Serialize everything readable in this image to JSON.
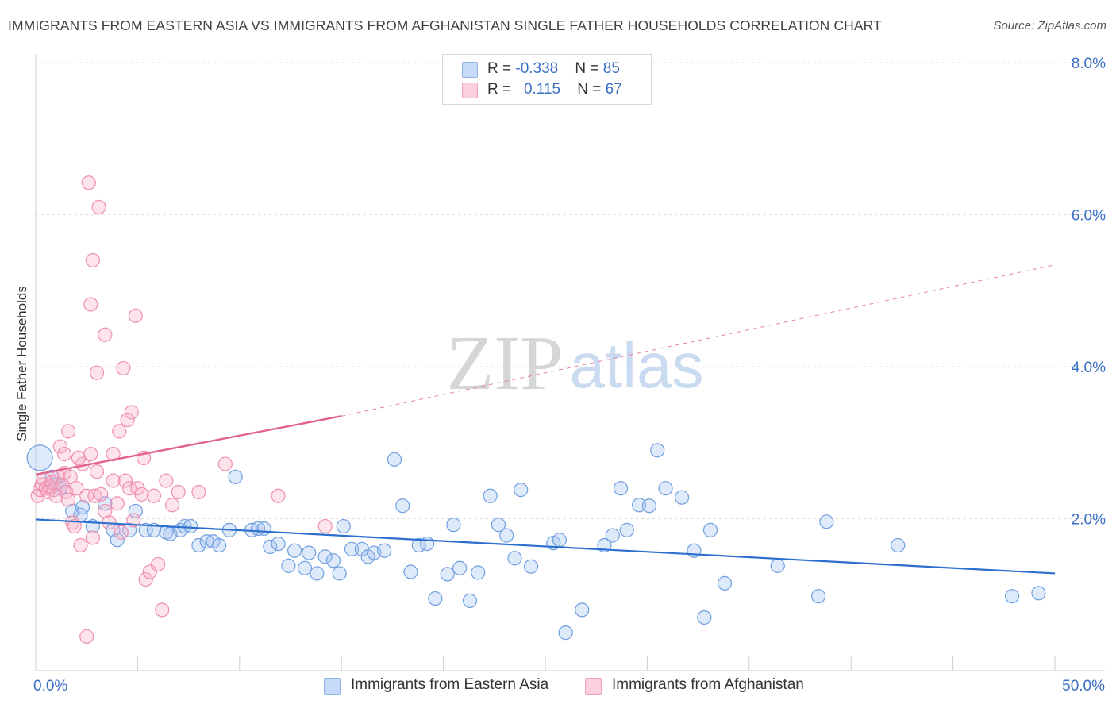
{
  "title": "IMMIGRANTS FROM EASTERN ASIA VS IMMIGRANTS FROM AFGHANISTAN SINGLE FATHER HOUSEHOLDS CORRELATION CHART",
  "source": "Source: ZipAtlas.com",
  "watermark": {
    "zip": "ZIP",
    "atlas": "atlas"
  },
  "legend": {
    "rows": [
      {
        "r_label": "R = ",
        "r_value": "-0.338",
        "n_label": "N = ",
        "n_value": "85",
        "color": "#a9c6ee"
      },
      {
        "r_label": "R = ",
        "r_value": "0.115",
        "n_label": "N = ",
        "n_value": "67",
        "color": "#f6b6cb"
      }
    ]
  },
  "colors": {
    "blue": "#6f9fe0",
    "blue_line": "#2c6fcf",
    "pink": "#f08fb0",
    "pink_line": "#e2628f"
  },
  "chart_data": {
    "type": "scatter",
    "xlabel": "",
    "ylabel": "Single Father Households",
    "xlim": [
      0,
      50
    ],
    "ylim": [
      0,
      8.4
    ],
    "x_tick_labels": [
      {
        "value": 0,
        "label": "0.0%"
      },
      {
        "value": 50,
        "label": "50.0%"
      }
    ],
    "y_tick_labels": [
      {
        "value": 2,
        "label": "2.0%"
      },
      {
        "value": 4,
        "label": "4.0%"
      },
      {
        "value": 6,
        "label": "6.0%"
      },
      {
        "value": 8,
        "label": "8.0%"
      }
    ],
    "grid": "horizontal-dashed",
    "legend_placement": "top-center",
    "series": [
      {
        "name": "Immigrants from Eastern Asia",
        "color": "#6f9fe0",
        "trend": {
          "x": [
            0,
            50
          ],
          "y": [
            1.99,
            1.28
          ],
          "dashed_from": null
        },
        "points": [
          [
            0.2,
            2.8
          ],
          [
            0.8,
            2.55
          ],
          [
            1.0,
            2.45
          ],
          [
            1.2,
            2.4
          ],
          [
            1.8,
            2.1
          ],
          [
            2.2,
            2.05
          ],
          [
            2.3,
            2.15
          ],
          [
            3.4,
            2.2
          ],
          [
            2.8,
            1.9
          ],
          [
            3.8,
            1.85
          ],
          [
            4.0,
            1.72
          ],
          [
            4.6,
            1.85
          ],
          [
            4.9,
            2.1
          ],
          [
            5.4,
            1.85
          ],
          [
            5.8,
            1.85
          ],
          [
            6.4,
            1.82
          ],
          [
            6.6,
            1.8
          ],
          [
            7.1,
            1.85
          ],
          [
            7.3,
            1.9
          ],
          [
            7.6,
            1.9
          ],
          [
            8.0,
            1.65
          ],
          [
            8.4,
            1.7
          ],
          [
            8.7,
            1.7
          ],
          [
            9.0,
            1.65
          ],
          [
            9.5,
            1.85
          ],
          [
            9.8,
            2.55
          ],
          [
            10.6,
            1.85
          ],
          [
            10.9,
            1.87
          ],
          [
            11.2,
            1.87
          ],
          [
            11.5,
            1.63
          ],
          [
            11.9,
            1.67
          ],
          [
            12.4,
            1.38
          ],
          [
            12.7,
            1.58
          ],
          [
            13.2,
            1.35
          ],
          [
            13.4,
            1.55
          ],
          [
            13.8,
            1.28
          ],
          [
            14.2,
            1.5
          ],
          [
            14.6,
            1.45
          ],
          [
            14.9,
            1.28
          ],
          [
            15.1,
            1.9
          ],
          [
            15.5,
            1.6
          ],
          [
            16.0,
            1.6
          ],
          [
            16.3,
            1.5
          ],
          [
            16.6,
            1.55
          ],
          [
            17.1,
            1.58
          ],
          [
            17.6,
            2.78
          ],
          [
            18.0,
            2.17
          ],
          [
            18.4,
            1.3
          ],
          [
            18.8,
            1.65
          ],
          [
            19.2,
            1.67
          ],
          [
            19.6,
            0.95
          ],
          [
            20.2,
            1.27
          ],
          [
            20.5,
            1.92
          ],
          [
            20.8,
            1.35
          ],
          [
            21.3,
            0.92
          ],
          [
            21.7,
            1.29
          ],
          [
            22.3,
            2.3
          ],
          [
            22.7,
            1.92
          ],
          [
            23.1,
            1.78
          ],
          [
            23.5,
            1.48
          ],
          [
            23.8,
            2.38
          ],
          [
            24.3,
            1.37
          ],
          [
            25.4,
            1.68
          ],
          [
            25.7,
            1.72
          ],
          [
            26.0,
            0.5
          ],
          [
            26.8,
            0.8
          ],
          [
            27.9,
            1.65
          ],
          [
            28.3,
            1.78
          ],
          [
            28.7,
            2.4
          ],
          [
            29.0,
            1.85
          ],
          [
            29.6,
            2.18
          ],
          [
            30.1,
            2.17
          ],
          [
            30.5,
            2.9
          ],
          [
            30.9,
            2.4
          ],
          [
            31.7,
            2.28
          ],
          [
            32.3,
            1.58
          ],
          [
            32.8,
            0.7
          ],
          [
            33.1,
            1.85
          ],
          [
            33.8,
            1.15
          ],
          [
            36.4,
            1.38
          ],
          [
            38.4,
            0.98
          ],
          [
            38.8,
            1.96
          ],
          [
            42.3,
            1.65
          ],
          [
            47.9,
            0.98
          ],
          [
            49.2,
            1.02
          ]
        ]
      },
      {
        "name": "Immigrants from Afghanistan",
        "color": "#f08fb0",
        "trend": {
          "x": [
            0,
            15,
            50
          ],
          "y": [
            2.58,
            3.35,
            5.34
          ],
          "dashed_from": 15
        },
        "points": [
          [
            0.1,
            2.3
          ],
          [
            0.2,
            2.38
          ],
          [
            0.3,
            2.45
          ],
          [
            0.4,
            2.52
          ],
          [
            0.5,
            2.4
          ],
          [
            0.6,
            2.35
          ],
          [
            0.7,
            2.42
          ],
          [
            0.8,
            2.48
          ],
          [
            0.9,
            2.38
          ],
          [
            1.0,
            2.3
          ],
          [
            1.1,
            2.55
          ],
          [
            1.2,
            2.95
          ],
          [
            1.3,
            2.45
          ],
          [
            1.4,
            2.6
          ],
          [
            1.5,
            2.35
          ],
          [
            1.6,
            2.25
          ],
          [
            1.7,
            2.55
          ],
          [
            1.8,
            1.95
          ],
          [
            1.9,
            1.9
          ],
          [
            2.0,
            2.4
          ],
          [
            2.2,
            1.65
          ],
          [
            2.3,
            2.72
          ],
          [
            2.5,
            2.3
          ],
          [
            2.7,
            2.85
          ],
          [
            2.8,
            1.75
          ],
          [
            2.9,
            2.3
          ],
          [
            3.0,
            2.62
          ],
          [
            3.2,
            2.32
          ],
          [
            3.4,
            2.1
          ],
          [
            3.6,
            1.95
          ],
          [
            3.8,
            2.5
          ],
          [
            4.0,
            2.2
          ],
          [
            4.2,
            1.82
          ],
          [
            4.4,
            2.5
          ],
          [
            4.6,
            2.4
          ],
          [
            4.8,
            1.98
          ],
          [
            5.0,
            2.4
          ],
          [
            5.2,
            2.32
          ],
          [
            5.4,
            1.2
          ],
          [
            5.6,
            1.3
          ],
          [
            5.8,
            2.3
          ],
          [
            6.0,
            1.4
          ],
          [
            6.2,
            0.8
          ],
          [
            6.4,
            2.5
          ],
          [
            2.5,
            0.45
          ],
          [
            2.6,
            6.42
          ],
          [
            3.1,
            6.1
          ],
          [
            2.8,
            5.4
          ],
          [
            2.7,
            4.82
          ],
          [
            3.4,
            4.42
          ],
          [
            4.9,
            4.67
          ],
          [
            3.0,
            3.92
          ],
          [
            4.3,
            3.98
          ],
          [
            4.7,
            3.4
          ],
          [
            4.5,
            3.3
          ],
          [
            4.1,
            3.15
          ],
          [
            1.6,
            3.15
          ],
          [
            1.4,
            2.85
          ],
          [
            2.1,
            2.8
          ],
          [
            3.8,
            2.85
          ],
          [
            5.3,
            2.8
          ],
          [
            6.7,
            2.18
          ],
          [
            7.0,
            2.35
          ],
          [
            8.0,
            2.35
          ],
          [
            9.3,
            2.72
          ],
          [
            11.9,
            2.3
          ],
          [
            14.2,
            1.9
          ]
        ]
      }
    ]
  },
  "bottom_legend": [
    {
      "label": "Immigrants from Eastern Asia",
      "color": "#a9c6ee"
    },
    {
      "label": "Immigrants from Afghanistan",
      "color": "#f6b6cb"
    }
  ]
}
